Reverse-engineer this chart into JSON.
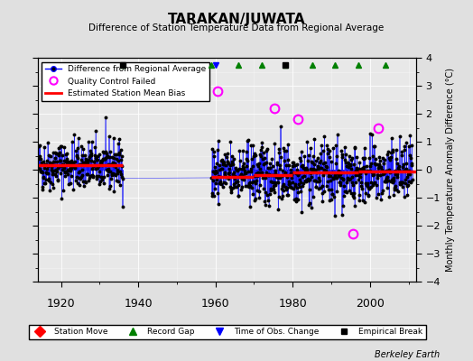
{
  "title": "TARAKAN/JUWATA",
  "subtitle": "Difference of Station Temperature Data from Regional Average",
  "ylabel": "Monthly Temperature Anomaly Difference (°C)",
  "xlabel_years": [
    1920,
    1940,
    1960,
    1980,
    2000
  ],
  "ylim": [
    -4,
    4
  ],
  "xlim": [
    1914,
    2012
  ],
  "background_color": "#e0e0e0",
  "plot_bg_color": "#e8e8e8",
  "bias_segments": [
    {
      "x_start": 1914,
      "x_end": 1936,
      "bias": 0.15
    },
    {
      "x_start": 1959,
      "x_end": 1970,
      "bias": -0.25
    },
    {
      "x_start": 1970,
      "x_end": 1980,
      "bias": -0.2
    },
    {
      "x_start": 1980,
      "x_end": 1997,
      "bias": -0.1
    },
    {
      "x_start": 1997,
      "x_end": 2012,
      "bias": -0.05
    }
  ],
  "record_gaps": [
    1936,
    1959,
    1966,
    1972,
    1978,
    1985,
    1991,
    1997,
    2004
  ],
  "obs_changes": [
    1960
  ],
  "empirical_breaks": [
    1936,
    1978
  ],
  "qc_failed_years": [
    1960.5,
    1975.2,
    1981.3,
    1995.5,
    2002.1
  ],
  "qc_failed_values": [
    2.8,
    2.2,
    1.8,
    -2.3,
    1.5
  ],
  "seed": 42,
  "periods": [
    {
      "t_start": 1914,
      "t_end": 1936,
      "mean_bias": 0.15,
      "std": 0.45
    },
    {
      "t_start": 1959,
      "t_end": 2011,
      "mean_bias": -0.15,
      "std": 0.55
    }
  ]
}
